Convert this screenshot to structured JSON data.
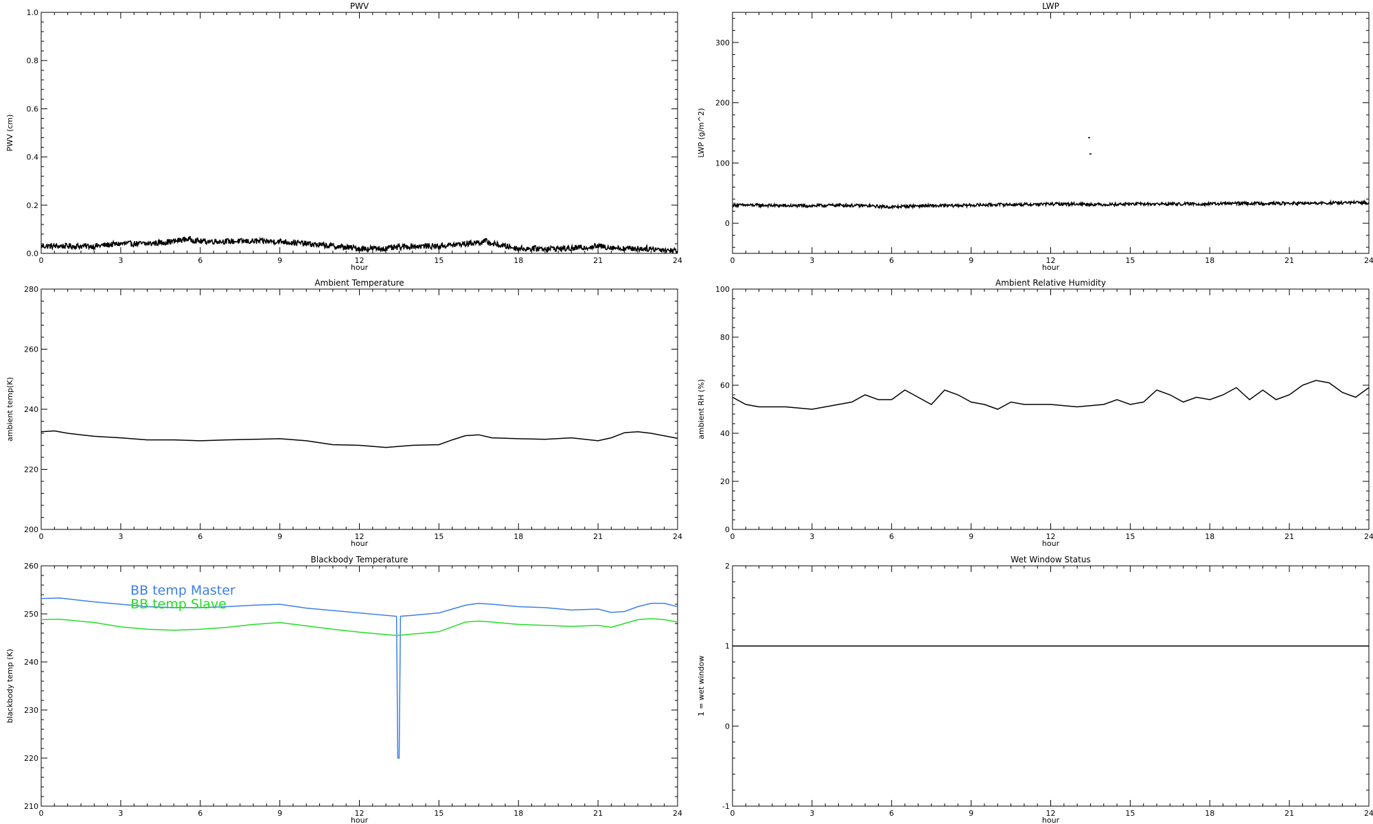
{
  "chart_data": [
    {
      "type": "line",
      "title": "PWV",
      "xlabel": "hour",
      "ylabel": "PWV (cm)",
      "xlim": [
        0,
        24
      ],
      "ylim": [
        0,
        1.0
      ],
      "xticks": [
        0,
        3,
        6,
        9,
        12,
        15,
        18,
        21,
        24
      ],
      "yticks": [
        0.0,
        0.2,
        0.4,
        0.6,
        0.8,
        1.0
      ],
      "ytick_labels": [
        "0.0",
        "0.2",
        "0.4",
        "0.6",
        "0.8",
        "1.0"
      ],
      "grid": false,
      "series": [
        {
          "color": "#000000",
          "noisy": true,
          "noise": 0.012,
          "x": [
            0,
            1,
            2,
            3,
            4,
            5,
            5.5,
            6,
            7,
            8,
            9,
            10,
            11,
            12,
            13,
            14,
            15,
            16,
            16.8,
            17,
            18,
            19,
            20,
            21,
            22,
            23,
            24
          ],
          "y": [
            0.03,
            0.03,
            0.03,
            0.04,
            0.04,
            0.05,
            0.06,
            0.05,
            0.05,
            0.05,
            0.05,
            0.04,
            0.03,
            0.02,
            0.02,
            0.03,
            0.03,
            0.04,
            0.05,
            0.04,
            0.02,
            0.02,
            0.02,
            0.03,
            0.02,
            0.02,
            0.01
          ]
        }
      ]
    },
    {
      "type": "line",
      "title": "LWP",
      "xlabel": "hour",
      "ylabel": "LWP (g/m^2)",
      "xlim": [
        0,
        24
      ],
      "ylim": [
        -50,
        350
      ],
      "xticks": [
        0,
        3,
        6,
        9,
        12,
        15,
        18,
        21,
        24
      ],
      "yticks": [
        0,
        100,
        200,
        300
      ],
      "ytick_labels": [
        "0",
        "100",
        "200",
        "300"
      ],
      "grid": false,
      "series": [
        {
          "color": "#000000",
          "noisy": true,
          "noise": 2.5,
          "x": [
            0,
            1,
            2,
            3,
            4,
            5,
            6,
            7,
            8,
            9,
            10,
            11,
            12,
            13,
            14,
            15,
            16,
            17,
            18,
            19,
            20,
            21,
            22,
            23,
            24
          ],
          "y": [
            30,
            30,
            29,
            29,
            30,
            29,
            27,
            29,
            29,
            30,
            31,
            31,
            32,
            32,
            31,
            32,
            32,
            32,
            32,
            33,
            33,
            33,
            33,
            34,
            34
          ]
        },
        {
          "color": "#000000",
          "points_only": true,
          "x": [
            13.45,
            13.5
          ],
          "y": [
            142,
            115
          ]
        }
      ]
    },
    {
      "type": "line",
      "title": "Ambient Temperature",
      "xlabel": "hour",
      "ylabel": "ambient temp(K)",
      "xlim": [
        0,
        24
      ],
      "ylim": [
        200,
        280
      ],
      "xticks": [
        0,
        3,
        6,
        9,
        12,
        15,
        18,
        21,
        24
      ],
      "yticks": [
        200,
        220,
        240,
        260,
        280
      ],
      "ytick_labels": [
        "200",
        "220",
        "240",
        "260",
        "280"
      ],
      "grid": false,
      "series": [
        {
          "color": "#000000",
          "x": [
            0,
            0.5,
            1,
            2,
            3,
            4,
            5,
            6,
            7,
            8,
            9,
            10,
            11,
            12,
            13,
            14,
            15,
            15.5,
            16,
            16.5,
            17,
            18,
            19,
            20,
            21,
            21.5,
            22,
            22.5,
            23,
            24
          ],
          "y": [
            232.5,
            232.8,
            232,
            231,
            230.5,
            229.8,
            229.8,
            229.5,
            229.8,
            230,
            230.2,
            229.5,
            228.2,
            228,
            227.3,
            228,
            228.2,
            229.8,
            231.2,
            231.5,
            230.5,
            230.2,
            230,
            230.5,
            229.5,
            230.5,
            232.2,
            232.5,
            232,
            230.3
          ]
        }
      ]
    },
    {
      "type": "line",
      "title": "Ambient Relative Humidity",
      "xlabel": "hour",
      "ylabel": "ambient RH (%)",
      "xlim": [
        0,
        24
      ],
      "ylim": [
        0,
        100
      ],
      "xticks": [
        0,
        3,
        6,
        9,
        12,
        15,
        18,
        21,
        24
      ],
      "yticks": [
        0,
        20,
        40,
        60,
        80,
        100
      ],
      "ytick_labels": [
        "0",
        "20",
        "40",
        "60",
        "80",
        "100"
      ],
      "grid": false,
      "series": [
        {
          "color": "#000000",
          "x": [
            0,
            0.5,
            1,
            2,
            3,
            4,
            4.5,
            5,
            5.5,
            6,
            6.5,
            7,
            7.5,
            8,
            8.5,
            9,
            9.5,
            10,
            10.5,
            11,
            12,
            13,
            14,
            14.5,
            15,
            15.5,
            16,
            16.5,
            17,
            17.5,
            18,
            18.5,
            19,
            19.5,
            20,
            20.5,
            21,
            21.5,
            22,
            22.5,
            23,
            23.5,
            24
          ],
          "y": [
            55,
            52,
            51,
            51,
            50,
            52,
            53,
            56,
            54,
            54,
            58,
            55,
            52,
            58,
            56,
            53,
            52,
            50,
            53,
            52,
            52,
            51,
            52,
            54,
            52,
            53,
            58,
            56,
            53,
            55,
            54,
            56,
            59,
            54,
            58,
            54,
            56,
            60,
            62,
            61,
            57,
            55,
            59
          ]
        }
      ]
    },
    {
      "type": "line",
      "title": "Blackbody Temperature",
      "xlabel": "hour",
      "ylabel": "blackbody temp (K)",
      "xlim": [
        0,
        24
      ],
      "ylim": [
        210,
        260
      ],
      "xticks": [
        0,
        3,
        6,
        9,
        12,
        15,
        18,
        21,
        24
      ],
      "yticks": [
        210,
        220,
        230,
        240,
        250,
        260
      ],
      "ytick_labels": [
        "210",
        "220",
        "230",
        "240",
        "250",
        "260"
      ],
      "grid": false,
      "legend_position": "top-left",
      "series": [
        {
          "name": "BB temp Master",
          "color": "#3b7fe6",
          "x": [
            0,
            0.7,
            2,
            3,
            4,
            5,
            6,
            7,
            8,
            9,
            10,
            11,
            12,
            13.4,
            13.45,
            13.5,
            13.55,
            14,
            15,
            15.5,
            16,
            16.5,
            17,
            18,
            19,
            20,
            21,
            21.5,
            22,
            22.5,
            23,
            23.5,
            24
          ],
          "y": [
            253.2,
            253.3,
            252.5,
            252,
            251.5,
            251.3,
            251.3,
            251.5,
            251.8,
            252,
            251.2,
            250.7,
            250.2,
            249.5,
            220,
            220,
            249.5,
            249.7,
            250.2,
            251,
            251.8,
            252.2,
            252,
            251.5,
            251.3,
            250.8,
            251,
            250.3,
            250.5,
            251.5,
            252.2,
            252.2,
            251.5
          ]
        },
        {
          "name": "BB temp Slave",
          "color": "#22dd22",
          "x": [
            0,
            0.7,
            2,
            3,
            4,
            5,
            6,
            7,
            8,
            9,
            10,
            11,
            12,
            13.4,
            14,
            15,
            15.5,
            16,
            16.5,
            17,
            18,
            19,
            20,
            21,
            21.5,
            22,
            22.5,
            23,
            23.5,
            24
          ],
          "y": [
            248.8,
            248.9,
            248.2,
            247.3,
            246.8,
            246.6,
            246.8,
            247.2,
            247.8,
            248.2,
            247.5,
            246.8,
            246.2,
            245.5,
            245.8,
            246.3,
            247.3,
            248.3,
            248.5,
            248.3,
            247.8,
            247.6,
            247.4,
            247.6,
            247.2,
            248,
            248.8,
            249,
            248.8,
            248.3
          ]
        }
      ]
    },
    {
      "type": "line",
      "title": "Wet Window Status",
      "xlabel": "hour",
      "ylabel": "1 = wet window",
      "xlim": [
        0,
        24
      ],
      "ylim": [
        -1,
        2
      ],
      "xticks": [
        0,
        3,
        6,
        9,
        12,
        15,
        18,
        21,
        24
      ],
      "yticks": [
        -1,
        0,
        1,
        2
      ],
      "ytick_labels": [
        "-1",
        "0",
        "1",
        "2"
      ],
      "grid": false,
      "series": [
        {
          "color": "#000000",
          "x": [
            0,
            24
          ],
          "y": [
            1,
            1
          ]
        }
      ]
    }
  ]
}
